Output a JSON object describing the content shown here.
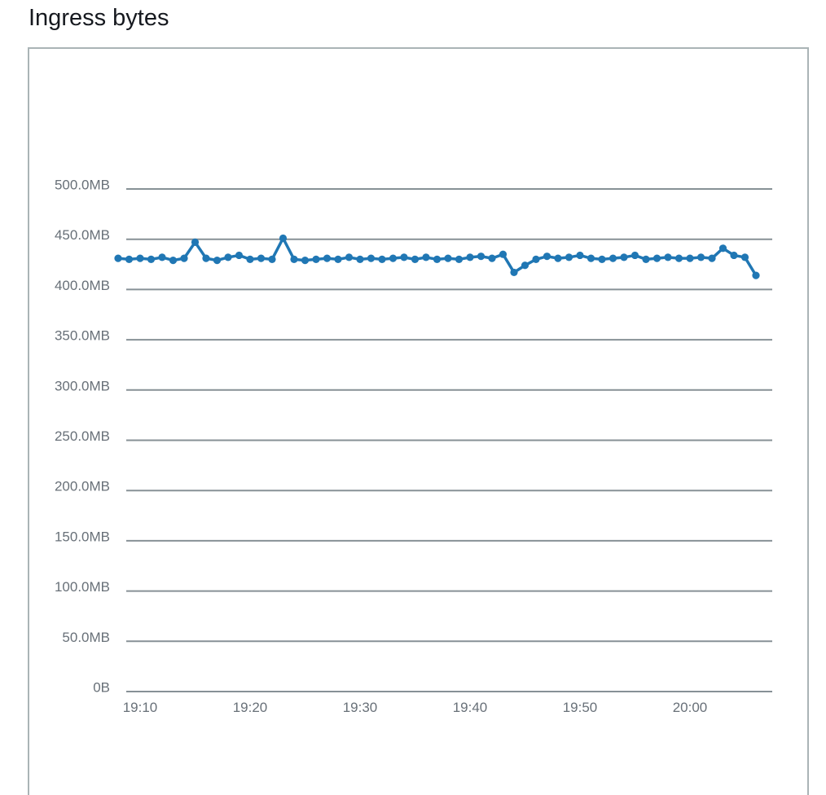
{
  "page": {
    "title": "Ingress bytes"
  },
  "colors": {
    "line": "#2077b4",
    "grid": "#879196",
    "tick_label": "#687078",
    "panel_border": "#aab4b6",
    "title_text": "#16191f"
  },
  "chart_data": {
    "type": "line",
    "title": "Ingress bytes",
    "xlabel": "",
    "ylabel": "",
    "unit": "MB",
    "legend": "none",
    "grid": "horizontal",
    "ylim": [
      0,
      550
    ],
    "x_ticks": [
      "19:10",
      "19:20",
      "19:30",
      "19:40",
      "19:50",
      "20:00"
    ],
    "y_ticks": [
      {
        "value": 0,
        "label": "0B"
      },
      {
        "value": 50,
        "label": "50.0MB"
      },
      {
        "value": 100,
        "label": "100.0MB"
      },
      {
        "value": 150,
        "label": "150.0MB"
      },
      {
        "value": 200,
        "label": "200.0MB"
      },
      {
        "value": 250,
        "label": "250.0MB"
      },
      {
        "value": 300,
        "label": "300.0MB"
      },
      {
        "value": 350,
        "label": "350.0MB"
      },
      {
        "value": 400,
        "label": "400.0MB"
      },
      {
        "value": 450,
        "label": "450.0MB"
      },
      {
        "value": 500,
        "label": "500.0MB"
      }
    ],
    "x": [
      "19:08",
      "19:09",
      "19:10",
      "19:11",
      "19:12",
      "19:13",
      "19:14",
      "19:15",
      "19:16",
      "19:17",
      "19:18",
      "19:19",
      "19:20",
      "19:21",
      "19:22",
      "19:23",
      "19:24",
      "19:25",
      "19:26",
      "19:27",
      "19:28",
      "19:29",
      "19:30",
      "19:31",
      "19:32",
      "19:33",
      "19:34",
      "19:35",
      "19:36",
      "19:37",
      "19:38",
      "19:39",
      "19:40",
      "19:41",
      "19:42",
      "19:43",
      "19:44",
      "19:45",
      "19:46",
      "19:47",
      "19:48",
      "19:49",
      "19:50",
      "19:51",
      "19:52",
      "19:53",
      "19:54",
      "19:55",
      "19:56",
      "19:57",
      "19:58",
      "19:59",
      "20:00",
      "20:01",
      "20:02",
      "20:03",
      "20:04",
      "20:05",
      "20:06"
    ],
    "values": [
      431,
      430,
      431,
      430,
      432,
      429,
      431,
      447,
      431,
      429,
      432,
      434,
      430,
      431,
      430,
      451,
      430,
      429,
      430,
      431,
      430,
      432,
      430,
      431,
      430,
      431,
      432,
      430,
      432,
      430,
      431,
      430,
      432,
      433,
      431,
      435,
      417,
      424,
      430,
      433,
      431,
      432,
      434,
      431,
      430,
      431,
      432,
      434,
      430,
      431,
      432,
      431,
      431,
      432,
      431,
      441,
      434,
      432,
      414
    ]
  }
}
